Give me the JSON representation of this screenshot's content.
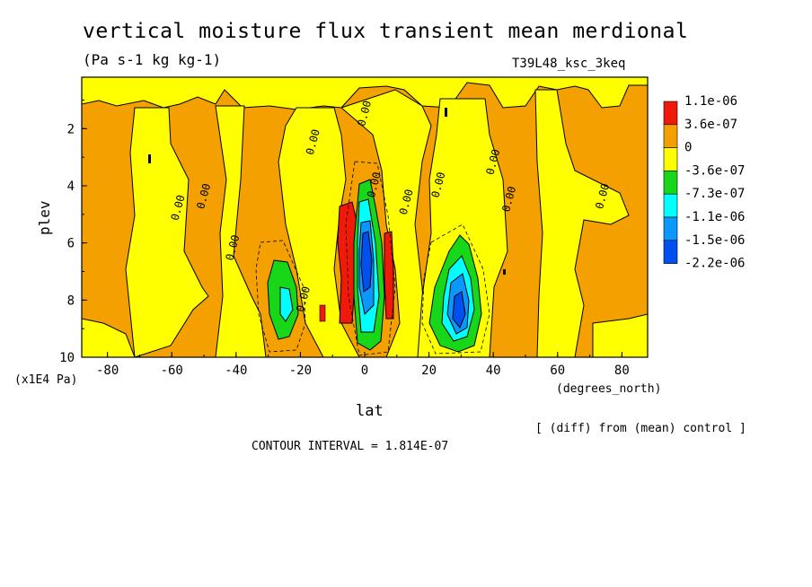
{
  "title": "vertical moisture flux transient mean merdional",
  "units": "(Pa s-1 kg kg-1)",
  "run_id": "T39L48_ksc_3keq",
  "note": "[ (diff) from (mean) control ]",
  "contour_interval": "CONTOUR INTERVAL = 1.814E-07",
  "colors": {
    "red": "#f01a0a",
    "orange": "#f3a000",
    "yellow": "#ffff00",
    "green": "#18d618",
    "cyan": "#00ffff",
    "lightblue": "#0a98ff",
    "blue": "#0050f0"
  },
  "chart_data": {
    "type": "heatmap",
    "xlabel": "lat",
    "xunits": "(degrees_north)",
    "ylabel": "plev",
    "yunits": "(x1E4 Pa)",
    "xlim": [
      -88,
      88
    ],
    "ylim": [
      10,
      0.2
    ],
    "xticks": [
      -80,
      -60,
      -40,
      -20,
      0,
      20,
      40,
      60,
      80
    ],
    "xtick_labels": [
      "-80",
      "-60",
      "-40",
      "-20",
      "0",
      "20",
      "40",
      "60",
      "80"
    ],
    "yticks": [
      2,
      4,
      6,
      8,
      10
    ],
    "ytick_labels": [
      "2",
      "4",
      "6",
      "8",
      "10"
    ],
    "legend": {
      "position": "right",
      "levels": [
        "1.1e-06",
        "3.6e-07",
        "0",
        "-3.6e-07",
        "-7.3e-07",
        "-1.1e-06",
        "-1.5e-06",
        "-2.2e-06"
      ],
      "colors": [
        "#f01a0a",
        "#f3a000",
        "#ffff00",
        "#18d618",
        "#00ffff",
        "#0a98ff",
        "#0050f0"
      ]
    },
    "contour_labels": [
      {
        "text": "0.00",
        "lat": -57,
        "plev": 4.8
      },
      {
        "text": "0.00",
        "lat": -49,
        "plev": 4.4
      },
      {
        "text": "0.00",
        "lat": -40,
        "plev": 6.2
      },
      {
        "text": "0.00",
        "lat": -15,
        "plev": 2.5
      },
      {
        "text": "0.00",
        "lat": 1,
        "plev": 1.5
      },
      {
        "text": "0.00",
        "lat": 4,
        "plev": 4.0
      },
      {
        "text": "0.00",
        "lat": 14,
        "plev": 4.6
      },
      {
        "text": "0.00",
        "lat": 24,
        "plev": 4.0
      },
      {
        "text": "0.00",
        "lat": 41,
        "plev": 3.2
      },
      {
        "text": "0.00",
        "lat": 46,
        "plev": 4.5
      },
      {
        "text": "0.00",
        "lat": 75,
        "plev": 4.4
      },
      {
        "text": "0.00",
        "lat": -18,
        "plev": 8.0
      }
    ],
    "features": [
      {
        "name": "negative-core-south",
        "lat": -25,
        "plev": 7.8,
        "min": "-1.1e-06"
      },
      {
        "name": "negative-core-equator",
        "lat": 0,
        "plev": 7.0,
        "min": "-2.2e-06"
      },
      {
        "name": "positive-core-equator-south",
        "lat": -5,
        "plev": 6.5,
        "max": "1.1e-06"
      },
      {
        "name": "positive-core-equator-north",
        "lat": 8,
        "plev": 7.5,
        "max": "1.1e-06"
      },
      {
        "name": "negative-core-north",
        "lat": 27,
        "plev": 8.2,
        "min": "-2.2e-06"
      }
    ]
  }
}
